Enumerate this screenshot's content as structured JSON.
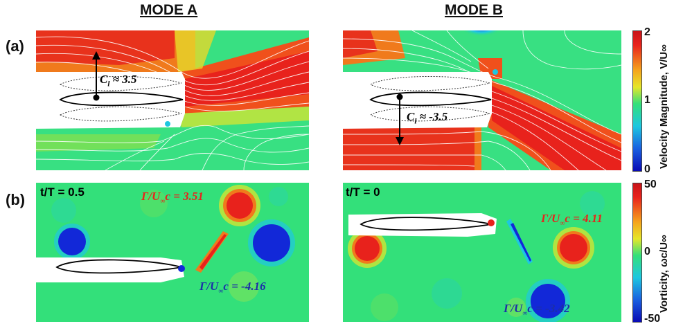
{
  "headers": {
    "mode_a": "MODE A",
    "mode_b": "MODE B"
  },
  "row_labels": {
    "a": "(a)",
    "b": "(b)"
  },
  "panels": {
    "a_left": {
      "annotation": "C_l ≈ 3.5",
      "annotation_main": "C",
      "annotation_sub": "l",
      "annotation_rest": " ≈ 3.5"
    },
    "a_right": {
      "annotation_main": "C",
      "annotation_sub": "l",
      "annotation_rest": " ≈ -3.5"
    },
    "b_left": {
      "time": "t/T = 0.5",
      "circ_pos": {
        "pre": "Γ/U",
        "sub": "∞",
        "post": "c = 3.51"
      },
      "circ_neg": {
        "pre": "Γ/U",
        "sub": "∞",
        "post": "c = -4.16"
      }
    },
    "b_right": {
      "time": "t/T = 0",
      "circ_pos": {
        "pre": "Γ/U",
        "sub": "∞",
        "post": "c = 4.11"
      },
      "circ_neg": {
        "pre": "Γ/U",
        "sub": "∞",
        "post": "c = -3.42"
      }
    }
  },
  "colorbars": {
    "velocity": {
      "label": "Velocity Magnitude, V/U∞",
      "ticks": [
        "2",
        "1",
        "0"
      ]
    },
    "vorticity": {
      "label": "Vorticity, ωc/U∞",
      "ticks": [
        "50",
        "0",
        "-50"
      ]
    }
  },
  "colors": {
    "red": "#e8221c",
    "orange": "#f5a41c",
    "yellow": "#e6e62a",
    "green": "#33e07a",
    "cyan": "#1ec7e0",
    "blue": "#1228d8",
    "annot_red": "#e8221c",
    "annot_blue": "#1c2fa8"
  }
}
